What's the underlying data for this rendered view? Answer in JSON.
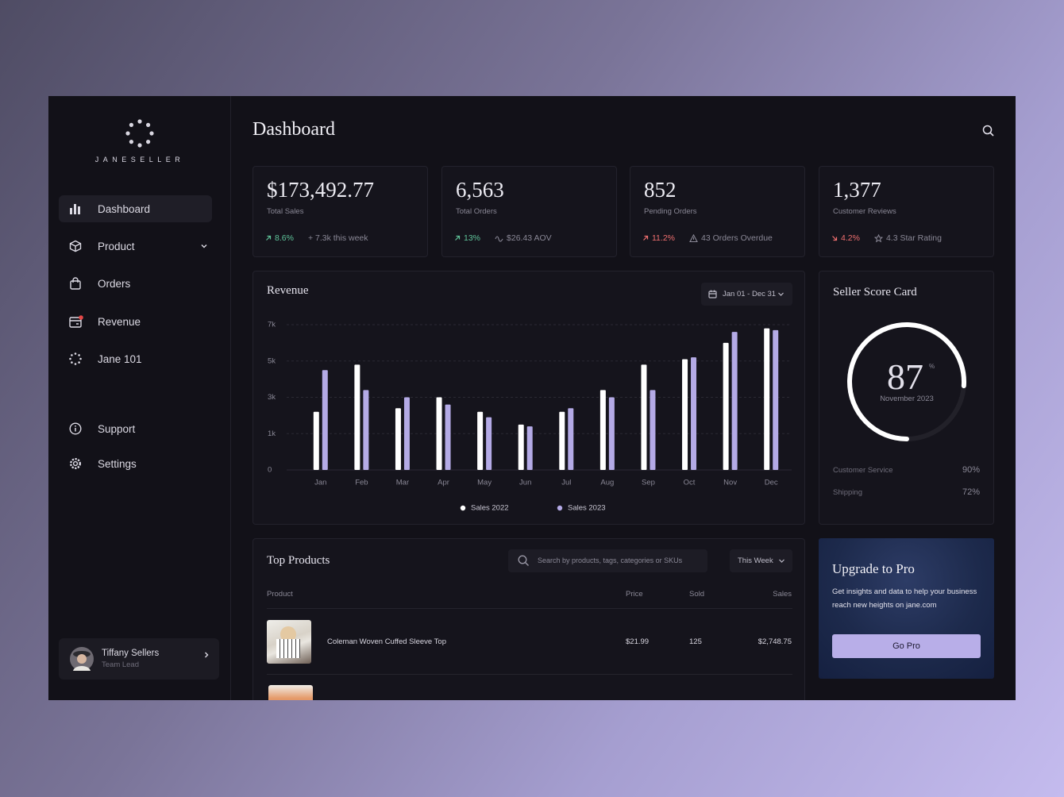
{
  "sidebar": {
    "brand": "JANESELLER",
    "nav": [
      "Dashboard",
      "Product",
      "Orders",
      "Revenue",
      "Jane 101"
    ],
    "nav_bottom": [
      "Support",
      "Settings"
    ],
    "user": {
      "name": "Tiffany Sellers",
      "role": "Team Lead"
    }
  },
  "header": {
    "title": "Dashboard"
  },
  "stats": [
    {
      "value": "$173,492.77",
      "label": "Total Sales",
      "trend": "8.6%",
      "trend_color": "#5fc49a",
      "note": "+ 7.3k this week"
    },
    {
      "value": "6,563",
      "label": "Total Orders",
      "trend": "13%",
      "trend_color": "#5fc49a",
      "note": "$26.43 AOV"
    },
    {
      "value": "852",
      "label": "Pending Orders",
      "trend": "11.2%",
      "trend_color": "#ef6f6f",
      "note": "43 Orders Overdue"
    },
    {
      "value": "1,377",
      "label": "Customer Reviews",
      "trend": "4.2%",
      "trend_color": "#ef6f6f",
      "note": "4.3 Star Rating"
    }
  ],
  "chart_data": {
    "type": "bar",
    "title": "Revenue",
    "date_range": "Jan 01 - Dec 31",
    "categories": [
      "Jan",
      "Feb",
      "Mar",
      "Apr",
      "May",
      "Jun",
      "Jul",
      "Aug",
      "Sep",
      "Oct",
      "Nov",
      "Dec"
    ],
    "series": [
      {
        "name": "Sales 2022",
        "color": "#ffffff",
        "values": [
          2200,
          4800,
          2400,
          3000,
          2200,
          1500,
          2200,
          3400,
          4800,
          5100,
          6000,
          6800
        ]
      },
      {
        "name": "Sales 2023",
        "color": "#b4aae6",
        "values": [
          4500,
          3400,
          3000,
          2600,
          1900,
          1400,
          2400,
          3000,
          3400,
          5200,
          6600,
          6700
        ]
      }
    ],
    "ylim": [
      0,
      7000
    ],
    "yticks": [
      0,
      {
        "value": 1000,
        "label": "1k"
      },
      {
        "value": 3000,
        "label": "3k"
      },
      {
        "value": 5000,
        "label": "5k"
      },
      {
        "value": 7000,
        "label": "7k"
      }
    ],
    "grid": true,
    "legend": "bottom"
  },
  "score_card": {
    "title": "Seller Score Card",
    "score": 87,
    "unit": "%",
    "period": "November 2023",
    "metrics": [
      {
        "name": "Customer Service",
        "value": "90%"
      },
      {
        "name": "Shipping",
        "value": "72%"
      }
    ]
  },
  "top_products": {
    "title": "Top Products",
    "search_placeholder": "Search by products, tags, categories or SKUs",
    "filter": "This Week",
    "columns": [
      "Product",
      "Price",
      "Sold",
      "Sales"
    ],
    "rows": [
      [
        "Coleman Woven Cuffed Sleeve Top",
        "$21.99",
        "125",
        "$2,748.75"
      ]
    ]
  },
  "upgrade": {
    "title": "Upgrade to Pro",
    "text": "Get insights and data to help your business reach new heights on jane.com",
    "button": "Go Pro"
  }
}
